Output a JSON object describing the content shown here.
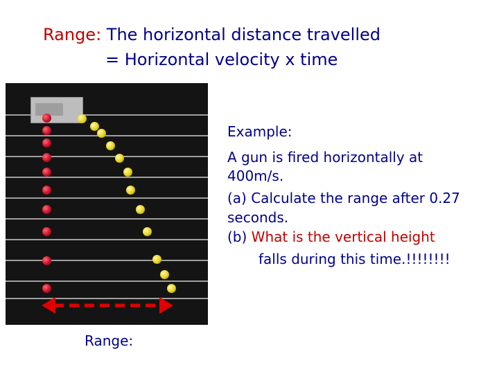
{
  "title": {
    "line1_term": "Range:",
    "line1_rest": " The horizontal distance travelled",
    "line2": "= Horizontal velocity x time"
  },
  "example": {
    "heading": "Example:",
    "line1": "A gun is fired horizontally at",
    "line2": "400m/s.",
    "line3": "(a) Calculate the range after 0.27",
    "line4": "seconds.",
    "line5_prefix": "(b) ",
    "line5_red": "What is the vertical height",
    "line6": "falls during this time.!!!!!!!!"
  },
  "range_label": "Range:",
  "colors": {
    "text": "#00008b",
    "accent": "#c00000",
    "photo_background": "#141414",
    "dropped_ball": "#c8102e",
    "launched_ball": "#e7d21a"
  }
}
